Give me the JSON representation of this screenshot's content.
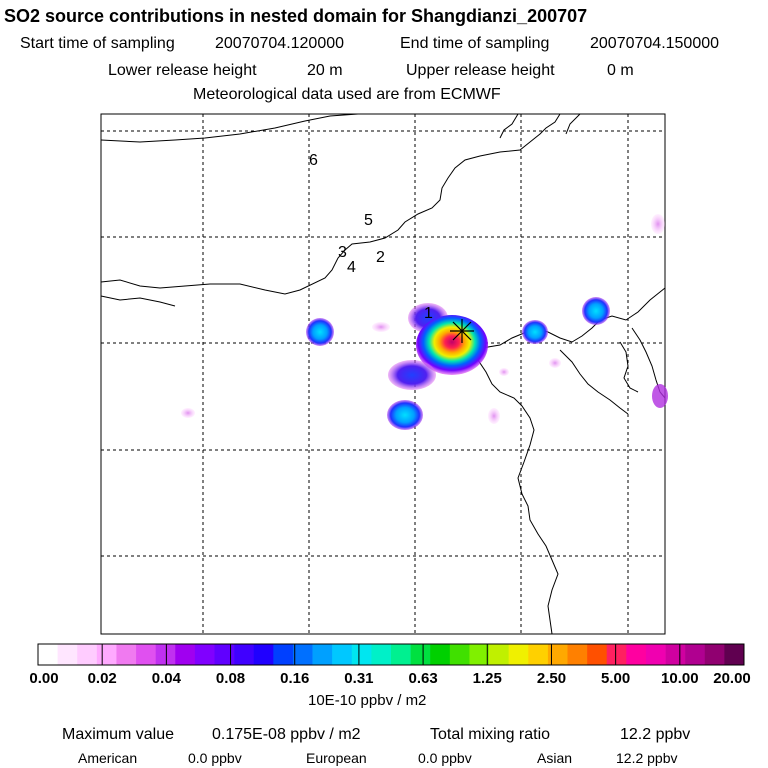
{
  "header": {
    "title": "SO2 source contributions in nested domain for Shangdianzi_200707",
    "start_label": "Start time of sampling",
    "start_value": "20070704.120000",
    "end_label": "End time of sampling",
    "end_value": "20070704.150000",
    "lower_label": "Lower release height",
    "lower_value": "20 m",
    "upper_label": "Upper release height",
    "upper_value": "0 m",
    "meteo": "Meteorological data used are from ECMWF"
  },
  "map": {
    "labels": [
      "1",
      "2",
      "3",
      "4",
      "5",
      "6"
    ],
    "marker": "receptor-star"
  },
  "chart_data": {
    "type": "heatmap",
    "title": "SO2 source contributions in nested domain for Shangdianzi_200707",
    "colorbar": {
      "ticks": [
        "0.00",
        "0.02",
        "0.04",
        "0.08",
        "0.16",
        "0.31",
        "0.63",
        "1.25",
        "2.50",
        "5.00",
        "10.00",
        "20.00"
      ],
      "colors": [
        "#ffffff",
        "#ffe6ff",
        "#ffccff",
        "#ffaaff",
        "#f07af0",
        "#e050f0",
        "#c030f0",
        "#a000f0",
        "#8000ff",
        "#6000ff",
        "#4000ff",
        "#2000ff",
        "#0040ff",
        "#0070ff",
        "#00a0ff",
        "#00c8ff",
        "#00e6f0",
        "#00f0c8",
        "#00f090",
        "#00e040",
        "#00d000",
        "#40e000",
        "#80f000",
        "#c0f000",
        "#f0f000",
        "#ffd000",
        "#ffa800",
        "#ff8000",
        "#ff5000",
        "#ff2060",
        "#ff00a0",
        "#f000b0",
        "#d000a0",
        "#b00090",
        "#900070",
        "#600050"
      ],
      "unit": "10E-10 ppbv / m2"
    }
  },
  "footer": {
    "max_label": "Maximum value",
    "max_value": "0.175E-08 ppbv / m2",
    "total_label": "Total mixing ratio",
    "total_value": "12.2 ppbv",
    "american_label": "American",
    "american_value": "0.0 ppbv",
    "european_label": "European",
    "european_value": "0.0 ppbv",
    "asian_label": "Asian",
    "asian_value": "12.2 ppbv"
  }
}
